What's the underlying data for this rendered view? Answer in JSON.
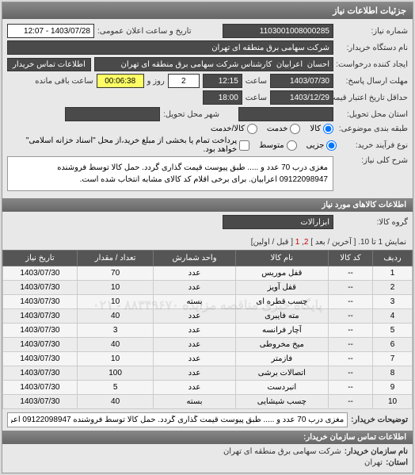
{
  "header": {
    "title": "جزئیات اطلاعات نیاز"
  },
  "form": {
    "request_no_label": "شماره نیاز:",
    "request_no": "1103001008000285",
    "announce_label": "تاریخ و ساعت اعلان عمومی:",
    "announce_value": "1403/07/28 - 12:07",
    "buyer_label": "نام دستگاه خریدار:",
    "buyer_value": "شرکت سهامی برق منطقه ای تهران",
    "creator_label": "ایجاد کننده درخواست:",
    "creator_value": "احسان  اعرابیان  کارشناس شرکت سهامی برق منطقه ای تهران",
    "contact_btn": "اطلاعات تماس خریدار",
    "deadline_label": "مهلت ارسال پاسخ:",
    "deadline_to_label": "تا تاریخ:",
    "deadline_date": "1403/07/30",
    "time_label": "ساعت",
    "deadline_time": "12:15",
    "days_remaining": "2",
    "days_label": "روز و",
    "time_remaining": "00:06:38",
    "remaining_label": "ساعت باقی مانده",
    "validity_label": "حداقل تاریخ اعتبار قیمت: تا تاریخ:",
    "validity_date": "1403/12/29",
    "validity_time": "18:00",
    "delivery_label": "استان محل تحویل:",
    "city_label": "شهر محل تحویل:",
    "commodity_label": "طبقه بندی موضوعی:",
    "radio_goods": "کالا",
    "radio_service": "خدمت",
    "radio_both": "کالا/خدمت",
    "process_label": "نوع فرآیند خرید:",
    "radio_partial": "جزیی",
    "radio_medium": "متوسط",
    "process_note": "پرداخت تمام یا بخشی از مبلغ خرید،از محل \"اسناد خزانه اسلامی\" خواهد بود.",
    "desc_label": "شرح کلی نیاز:",
    "desc_text": "مغزی درب 70 عدد و ..... طبق پیوست قیمت گذاری گردد. حمل کالا توسط فروشنده 09122098947 اعرابیان. برای برخی اقلام کد کالای مشابه انتخاب شده است."
  },
  "goods": {
    "section_title": "اطلاعات کالاهای مورد نیاز",
    "group_label": "گروه کالا:",
    "group_value": "ابزارآلات",
    "pager_text": "نمایش 1 تا 10. [ آخرین / بعد ]",
    "pager_current": "1",
    "pager_next": "2",
    "pager_suffix": "[ قبل / اولین]",
    "columns": [
      "ردیف",
      "کد کالا",
      "نام کالا",
      "واحد شمارش",
      "تعداد / مقدار",
      "تاریخ نیاز"
    ],
    "rows": [
      [
        "1",
        "--",
        "قفل موریس",
        "عدد",
        "70",
        "1403/07/30"
      ],
      [
        "2",
        "--",
        "قفل آویز",
        "عدد",
        "10",
        "1403/07/30"
      ],
      [
        "3",
        "--",
        "چسب قطره ای",
        "بسته",
        "10",
        "1403/07/30"
      ],
      [
        "4",
        "--",
        "مته فایبری",
        "عدد",
        "40",
        "1403/07/30"
      ],
      [
        "5",
        "--",
        "آچار فرانسه",
        "عدد",
        "3",
        "1403/07/30"
      ],
      [
        "6",
        "--",
        "میخ مخروطی",
        "عدد",
        "40",
        "1403/07/30"
      ],
      [
        "7",
        "--",
        "فازمتر",
        "عدد",
        "10",
        "1403/07/30"
      ],
      [
        "8",
        "--",
        "اتصالات برشی",
        "عدد",
        "100",
        "1403/07/30"
      ],
      [
        "9",
        "--",
        "انبردست",
        "عدد",
        "5",
        "1403/07/30"
      ],
      [
        "10",
        "--",
        "چسب شیشایی",
        "بسته",
        "40",
        "1403/07/30"
      ]
    ],
    "watermark": "پایگاه خبری مناقصه مزایده\n۸۸۳۴۹۶۷۰ - ۰۲۱"
  },
  "footer": {
    "buyer_note_label": "توضیحات خریدار:",
    "buyer_note": "مغزی درب 70 عدد و ..... طبق پیوست قیمت گذاری گردد. حمل کالا توسط فروشنده 09122098947 اعرابیان",
    "org_section_title": "اطلاعات تماس سازمان خریدار:",
    "org_name_label": "نام سازمان خریدار:",
    "org_name": "شرکت سهامی برق منطقه ای تهران",
    "province_label": "استان:",
    "province": "تهران"
  }
}
